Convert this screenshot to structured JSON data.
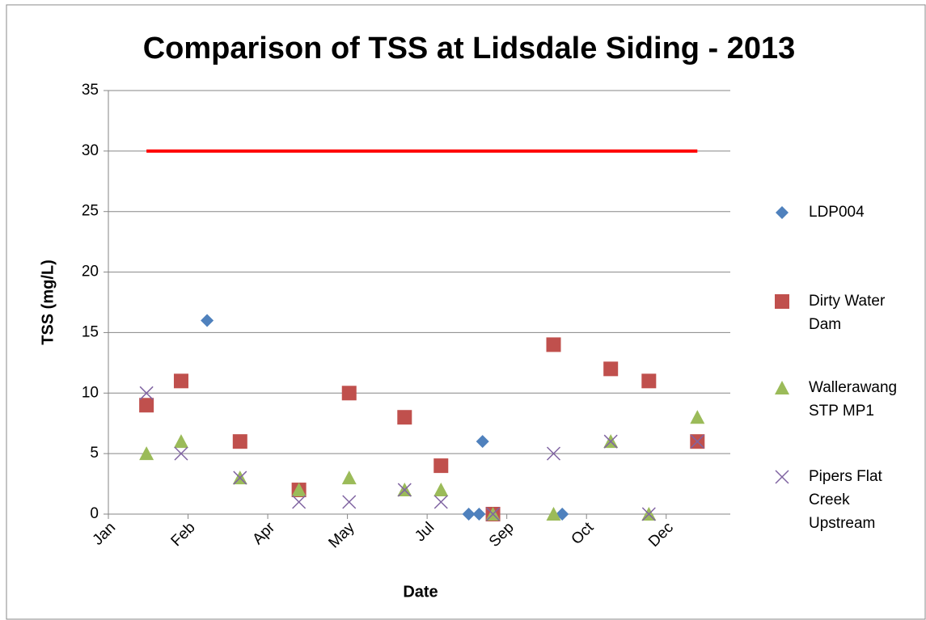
{
  "chart_data": {
    "type": "scatter",
    "title": "Comparison of TSS at Lidsdale Siding - 2013",
    "xlabel": "Date",
    "ylabel": "TSS (mg/L)",
    "xlim": [
      0,
      359
    ],
    "ylim": [
      0,
      35
    ],
    "xticks": [
      {
        "value": 0,
        "label": "Jan"
      },
      {
        "value": 46,
        "label": "Feb"
      },
      {
        "value": 92,
        "label": "Apr"
      },
      {
        "value": 138,
        "label": "May"
      },
      {
        "value": 184,
        "label": "Jul"
      },
      {
        "value": 230,
        "label": "Sep"
      },
      {
        "value": 276,
        "label": "Oct"
      },
      {
        "value": 322,
        "label": "Dec"
      }
    ],
    "yticks": [
      0,
      5,
      10,
      15,
      20,
      25,
      30,
      35
    ],
    "grid": true,
    "legend": "right",
    "series": [
      {
        "name": "LDP004",
        "color": "#4f81bd",
        "marker": "diamond",
        "x": [
          57,
          208,
          214,
          216,
          262
        ],
        "values": [
          16,
          0,
          0,
          6,
          0
        ]
      },
      {
        "name": "Dirty Water Dam",
        "color": "#c0504d",
        "marker": "square",
        "x": [
          22,
          42,
          76,
          110,
          139,
          171,
          192,
          222,
          257,
          290,
          312,
          340
        ],
        "values": [
          9,
          11,
          6,
          2,
          10,
          8,
          4,
          0,
          14,
          12,
          11,
          6
        ]
      },
      {
        "name": "Wallerawang STP MP1",
        "color": "#9bbb59",
        "marker": "triangle",
        "x": [
          22,
          42,
          76,
          110,
          139,
          171,
          192,
          222,
          257,
          290,
          312,
          340
        ],
        "values": [
          5,
          6,
          3,
          2,
          3,
          2,
          2,
          0,
          0,
          6,
          0,
          8
        ]
      },
      {
        "name": "Pipers Flat Creek Upstream",
        "color": "#8064a2",
        "marker": "x",
        "x": [
          22,
          42,
          76,
          110,
          139,
          171,
          192,
          222,
          257,
          290,
          312,
          340
        ],
        "values": [
          10,
          5,
          3,
          1,
          1,
          2,
          1,
          0,
          5,
          6,
          0,
          6
        ]
      },
      {
        "color": "#ff0000",
        "marker": "line",
        "x": [
          22,
          340
        ],
        "values": [
          30,
          30
        ]
      }
    ]
  }
}
